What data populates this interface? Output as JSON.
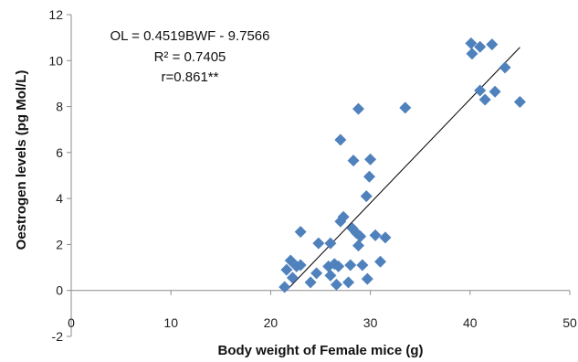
{
  "chart_data": {
    "type": "scatter",
    "xlabel": "Body weight of Female mice (g)",
    "ylabel": "Oestrogen levels (pg Mol/L)",
    "xlim": [
      0,
      50
    ],
    "ylim": [
      -2,
      12
    ],
    "x_ticks": [
      "0",
      "10",
      "20",
      "30",
      "40",
      "50"
    ],
    "y_ticks": [
      "-2",
      "0",
      "2",
      "4",
      "6",
      "8",
      "10",
      "12"
    ],
    "grid": false,
    "legend": "none",
    "marker_color": "#4F81BD",
    "trendline": {
      "type": "linear",
      "slope": 0.4519,
      "intercept": -9.7566,
      "x_range": [
        21.6,
        45.0
      ],
      "color": "#000000"
    },
    "annotations": [
      "OL = 0.4519BWF - 9.7566",
      "R² = 0.7405",
      "r=0.861**"
    ],
    "points": [
      {
        "x": 21.4,
        "y": 0.15
      },
      {
        "x": 21.6,
        "y": 0.9
      },
      {
        "x": 22.0,
        "y": 1.3
      },
      {
        "x": 22.2,
        "y": 0.55
      },
      {
        "x": 22.6,
        "y": 1.05
      },
      {
        "x": 23.0,
        "y": 2.55
      },
      {
        "x": 23.0,
        "y": 1.1
      },
      {
        "x": 24.0,
        "y": 0.35
      },
      {
        "x": 24.6,
        "y": 0.75
      },
      {
        "x": 24.8,
        "y": 2.05
      },
      {
        "x": 25.8,
        "y": 1.05
      },
      {
        "x": 26.0,
        "y": 0.65
      },
      {
        "x": 26.0,
        "y": 2.05
      },
      {
        "x": 26.4,
        "y": 1.15
      },
      {
        "x": 26.6,
        "y": 0.25
      },
      {
        "x": 26.8,
        "y": 1.05
      },
      {
        "x": 27.0,
        "y": 6.55
      },
      {
        "x": 27.0,
        "y": 3.0
      },
      {
        "x": 27.3,
        "y": 3.2
      },
      {
        "x": 27.8,
        "y": 0.35
      },
      {
        "x": 28.0,
        "y": 1.1
      },
      {
        "x": 28.2,
        "y": 2.7
      },
      {
        "x": 28.3,
        "y": 5.65
      },
      {
        "x": 28.6,
        "y": 2.5
      },
      {
        "x": 28.8,
        "y": 1.95
      },
      {
        "x": 28.8,
        "y": 7.9
      },
      {
        "x": 29.0,
        "y": 2.35
      },
      {
        "x": 29.2,
        "y": 1.1
      },
      {
        "x": 29.6,
        "y": 4.1
      },
      {
        "x": 29.7,
        "y": 0.5
      },
      {
        "x": 29.9,
        "y": 4.95
      },
      {
        "x": 30.0,
        "y": 5.7
      },
      {
        "x": 30.5,
        "y": 2.4
      },
      {
        "x": 31.0,
        "y": 1.25
      },
      {
        "x": 31.5,
        "y": 2.3
      },
      {
        "x": 33.5,
        "y": 7.95
      },
      {
        "x": 40.1,
        "y": 10.75
      },
      {
        "x": 40.2,
        "y": 10.3
      },
      {
        "x": 41.0,
        "y": 10.6
      },
      {
        "x": 41.0,
        "y": 8.7
      },
      {
        "x": 41.5,
        "y": 8.3
      },
      {
        "x": 42.2,
        "y": 10.7
      },
      {
        "x": 42.5,
        "y": 8.65
      },
      {
        "x": 43.5,
        "y": 9.7
      },
      {
        "x": 45.0,
        "y": 8.2
      }
    ]
  }
}
